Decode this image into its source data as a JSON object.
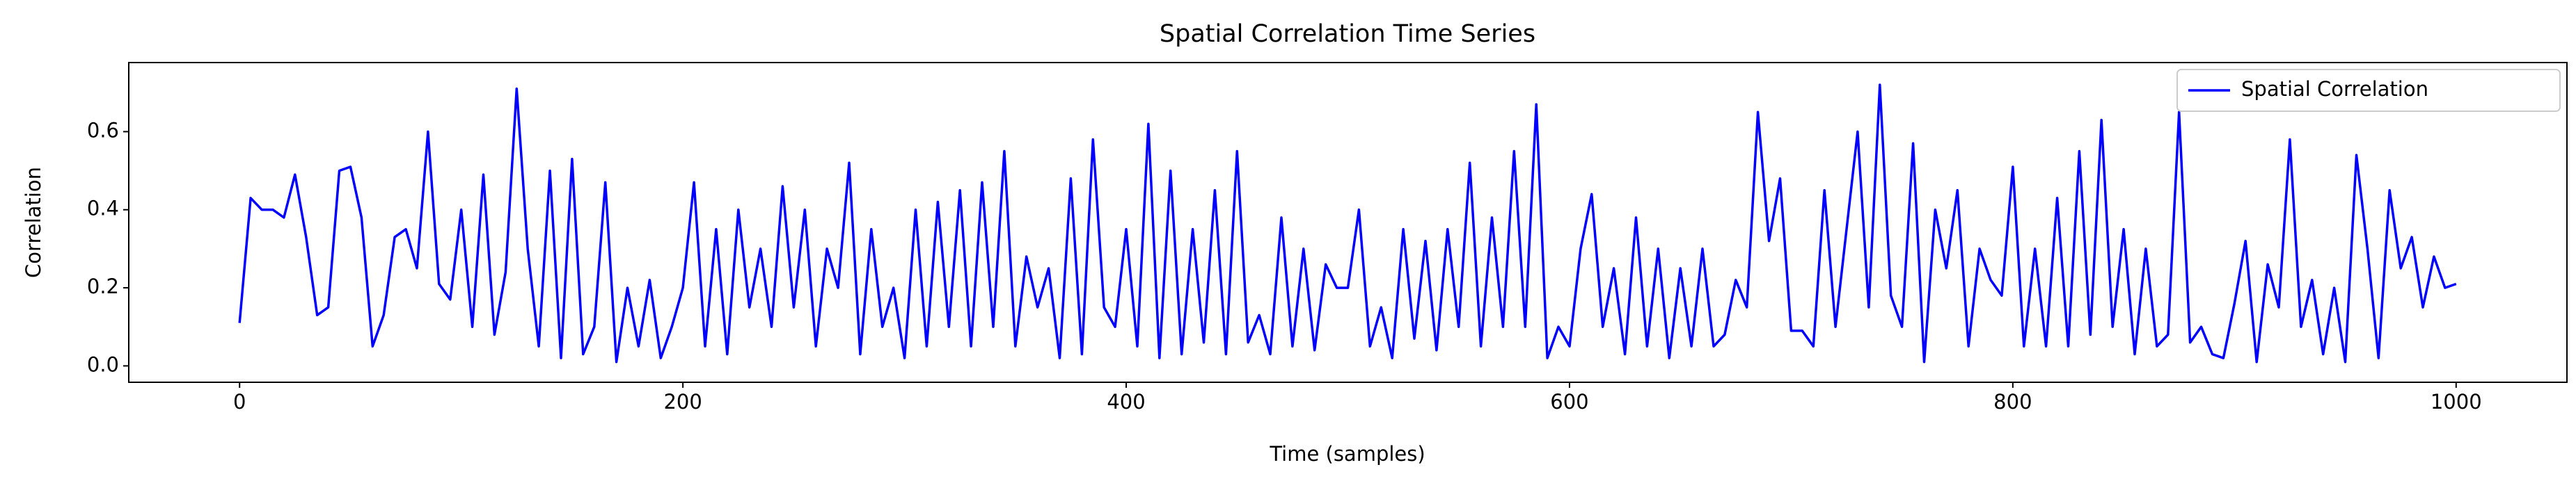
{
  "chart_data": {
    "type": "line",
    "title": "Spatial Correlation Time Series",
    "x_label": "Time (samples)",
    "y_label": "Correlation",
    "x": [
      0,
      5,
      10,
      15,
      20,
      25,
      30,
      35,
      40,
      45,
      50,
      55,
      60,
      65,
      70,
      75,
      80,
      85,
      90,
      95,
      100,
      105,
      110,
      115,
      120,
      125,
      130,
      135,
      140,
      145,
      150,
      155,
      160,
      165,
      170,
      175,
      180,
      185,
      190,
      195,
      200,
      205,
      210,
      215,
      220,
      225,
      230,
      235,
      240,
      245,
      250,
      255,
      260,
      265,
      270,
      275,
      280,
      285,
      290,
      295,
      300,
      305,
      310,
      315,
      320,
      325,
      330,
      335,
      340,
      345,
      350,
      355,
      360,
      365,
      370,
      375,
      380,
      385,
      390,
      395,
      400,
      405,
      410,
      415,
      420,
      425,
      430,
      435,
      440,
      445,
      450,
      455,
      460,
      465,
      470,
      475,
      480,
      485,
      490,
      495,
      500,
      505,
      510,
      515,
      520,
      525,
      530,
      535,
      540,
      545,
      550,
      555,
      560,
      565,
      570,
      575,
      580,
      585,
      590,
      595,
      600,
      605,
      610,
      615,
      620,
      625,
      630,
      635,
      640,
      645,
      650,
      655,
      660,
      665,
      670,
      675,
      680,
      685,
      690,
      695,
      700,
      705,
      710,
      715,
      720,
      725,
      730,
      735,
      740,
      745,
      750,
      755,
      760,
      765,
      770,
      775,
      780,
      785,
      790,
      795,
      800,
      805,
      810,
      815,
      820,
      825,
      830,
      835,
      840,
      845,
      850,
      855,
      860,
      865,
      870,
      875,
      880,
      885,
      890,
      895,
      900,
      905,
      910,
      915,
      920,
      925,
      930,
      935,
      940,
      945,
      950,
      955,
      960,
      965,
      970,
      975,
      980,
      985,
      990,
      995,
      1000
    ],
    "series": [
      {
        "name": "Spatial Correlation",
        "color": "#0000ff",
        "values": [
          0.11,
          0.43,
          0.4,
          0.4,
          0.38,
          0.49,
          0.33,
          0.13,
          0.15,
          0.5,
          0.51,
          0.38,
          0.05,
          0.13,
          0.33,
          0.35,
          0.25,
          0.6,
          0.21,
          0.17,
          0.4,
          0.1,
          0.49,
          0.08,
          0.24,
          0.71,
          0.3,
          0.05,
          0.5,
          0.02,
          0.53,
          0.03,
          0.1,
          0.47,
          0.01,
          0.2,
          0.05,
          0.22,
          0.02,
          0.1,
          0.2,
          0.47,
          0.05,
          0.35,
          0.03,
          0.4,
          0.15,
          0.3,
          0.1,
          0.46,
          0.15,
          0.4,
          0.05,
          0.3,
          0.2,
          0.52,
          0.03,
          0.35,
          0.1,
          0.2,
          0.02,
          0.4,
          0.05,
          0.42,
          0.1,
          0.45,
          0.05,
          0.47,
          0.1,
          0.55,
          0.05,
          0.28,
          0.15,
          0.25,
          0.02,
          0.48,
          0.03,
          0.58,
          0.15,
          0.1,
          0.35,
          0.05,
          0.62,
          0.02,
          0.5,
          0.03,
          0.35,
          0.06,
          0.45,
          0.03,
          0.55,
          0.06,
          0.13,
          0.03,
          0.38,
          0.05,
          0.3,
          0.04,
          0.26,
          0.2,
          0.2,
          0.4,
          0.05,
          0.15,
          0.02,
          0.35,
          0.07,
          0.32,
          0.04,
          0.35,
          0.1,
          0.52,
          0.05,
          0.38,
          0.1,
          0.55,
          0.1,
          0.67,
          0.02,
          0.1,
          0.05,
          0.3,
          0.44,
          0.1,
          0.25,
          0.03,
          0.38,
          0.05,
          0.3,
          0.02,
          0.25,
          0.05,
          0.3,
          0.05,
          0.08,
          0.22,
          0.15,
          0.65,
          0.32,
          0.48,
          0.09,
          0.09,
          0.05,
          0.45,
          0.1,
          0.35,
          0.6,
          0.15,
          0.72,
          0.18,
          0.1,
          0.57,
          0.01,
          0.4,
          0.25,
          0.45,
          0.05,
          0.3,
          0.22,
          0.18,
          0.51,
          0.05,
          0.3,
          0.05,
          0.43,
          0.05,
          0.55,
          0.08,
          0.63,
          0.1,
          0.35,
          0.03,
          0.3,
          0.05,
          0.08,
          0.65,
          0.06,
          0.1,
          0.03,
          0.02,
          0.16,
          0.32,
          0.01,
          0.26,
          0.15,
          0.58,
          0.1,
          0.22,
          0.03,
          0.2,
          0.01,
          0.54,
          0.3,
          0.02,
          0.45,
          0.25,
          0.33,
          0.15,
          0.28,
          0.2,
          0.21
        ]
      }
    ],
    "xlim": [
      -50,
      1050
    ],
    "ylim": [
      -0.042,
      0.777
    ],
    "xticks": [
      0,
      200,
      400,
      600,
      800,
      1000
    ],
    "yticks": [
      {
        "value": 0,
        "label": "0.0"
      },
      0.2,
      0.4,
      0.6
    ],
    "legend": "upper right"
  }
}
